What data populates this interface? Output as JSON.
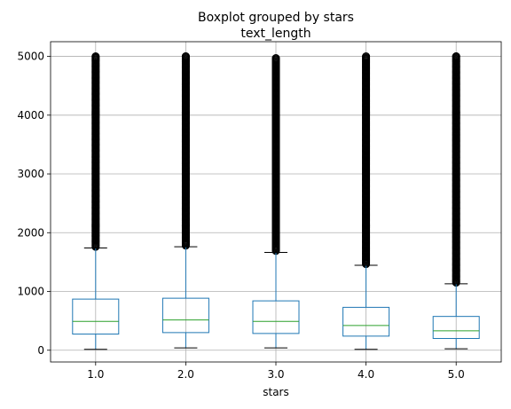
{
  "chart_data": {
    "type": "boxplot",
    "suptitle": "Boxplot grouped by stars",
    "title": "text_length",
    "xlabel": "stars",
    "ylabel": "",
    "categories": [
      "1.0",
      "2.0",
      "3.0",
      "4.0",
      "5.0"
    ],
    "ylim": [
      -200,
      5250
    ],
    "yticks": [
      0,
      1000,
      2000,
      3000,
      4000,
      5000
    ],
    "grid": true,
    "colors": {
      "box": "#1f77b4",
      "median": "#2ca02c",
      "whisker_cap": "#000000",
      "flier": "#000000"
    },
    "boxes": [
      {
        "category": "1.0",
        "whislo": 15,
        "q1": 275,
        "median": 490,
        "q3": 870,
        "whishi": 1740,
        "outliers_from": 1760,
        "outliers_to": 5000
      },
      {
        "category": "2.0",
        "whislo": 40,
        "q1": 300,
        "median": 515,
        "q3": 885,
        "whishi": 1760,
        "outliers_from": 1780,
        "outliers_to": 5000
      },
      {
        "category": "3.0",
        "whislo": 40,
        "q1": 285,
        "median": 490,
        "q3": 840,
        "whishi": 1665,
        "outliers_from": 1690,
        "outliers_to": 4970
      },
      {
        "category": "4.0",
        "whislo": 15,
        "q1": 240,
        "median": 420,
        "q3": 730,
        "whishi": 1445,
        "outliers_from": 1465,
        "outliers_to": 5000
      },
      {
        "category": "5.0",
        "whislo": 25,
        "q1": 200,
        "median": 330,
        "q3": 575,
        "whishi": 1130,
        "outliers_from": 1150,
        "outliers_to": 5000
      }
    ]
  }
}
